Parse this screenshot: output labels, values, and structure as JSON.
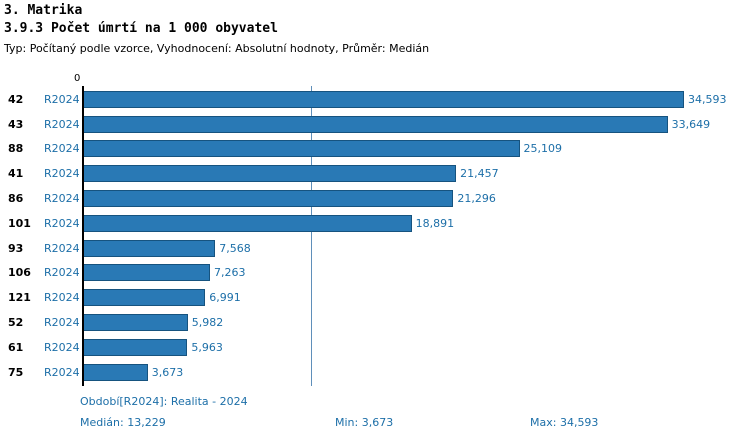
{
  "header": {
    "section_title": "3. Matrika",
    "chart_title": "3.9.3 Počet úmrtí na 1 000 obyvatel",
    "subtitle": "Typ: Počítaný podle vzorce, Vyhodnocení: Absolutní hodnoty, Průměr: Medián"
  },
  "chart_data": {
    "type": "bar",
    "orientation": "horizontal",
    "title": "3.9.3 Počet úmrtí na 1 000 obyvatel",
    "x_origin_label": "0",
    "categories": [
      "42",
      "43",
      "88",
      "41",
      "86",
      "101",
      "93",
      "106",
      "121",
      "52",
      "61",
      "75"
    ],
    "period_label": "R2024",
    "values": [
      34593,
      33649,
      25109,
      21457,
      21296,
      18891,
      7568,
      7263,
      6991,
      5982,
      5963,
      3673
    ],
    "value_labels": [
      "34,593",
      "33,649",
      "25,109",
      "21,457",
      "21,296",
      "18,891",
      "7,568",
      "7,263",
      "6,991",
      "5,982",
      "5,963",
      "3,673"
    ],
    "xlim": [
      0,
      34593
    ],
    "median": 13229,
    "min": 3673,
    "max": 34593,
    "median_line": true,
    "grid": false,
    "legend": false,
    "bar_color": "#2979b5",
    "bar_border_color": "#16537f",
    "accent_text_color": "#1d6fa8"
  },
  "footer": {
    "period": "Období[R2024]: Realita - 2024",
    "median": "Medián: 13,229",
    "min": "Min: 3,673",
    "max": "Max: 34,593"
  }
}
